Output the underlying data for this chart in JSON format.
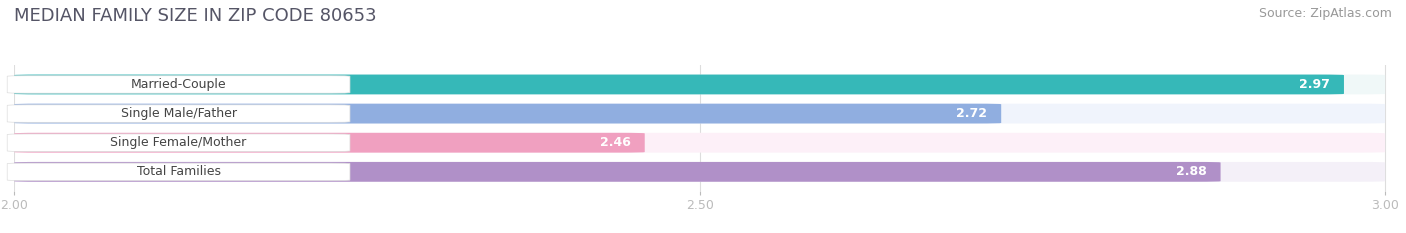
{
  "title": "MEDIAN FAMILY SIZE IN ZIP CODE 80653",
  "source": "Source: ZipAtlas.com",
  "categories": [
    "Married-Couple",
    "Single Male/Father",
    "Single Female/Mother",
    "Total Families"
  ],
  "values": [
    2.97,
    2.72,
    2.46,
    2.88
  ],
  "bar_colors": [
    "#36b8b8",
    "#90aee0",
    "#f0a0c0",
    "#b090c8"
  ],
  "bar_bg_colors": [
    "#f0f8f8",
    "#f0f4fc",
    "#fdf0f8",
    "#f4f0f8"
  ],
  "xmin": 2.0,
  "xmax": 3.0,
  "xticks": [
    2.0,
    2.5,
    3.0
  ],
  "xtick_labels": [
    "2.00",
    "2.50",
    "3.00"
  ],
  "title_fontsize": 13,
  "source_fontsize": 9,
  "bar_label_fontsize": 9,
  "value_fontsize": 9,
  "tick_fontsize": 9,
  "bg_color": "#ffffff"
}
